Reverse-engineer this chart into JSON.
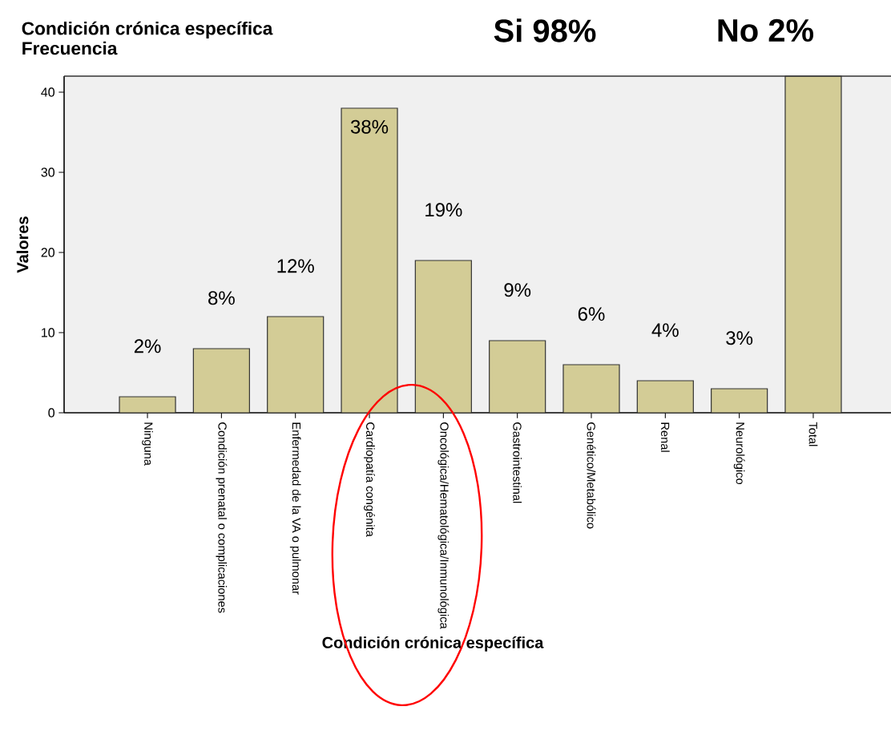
{
  "chart_data": {
    "type": "bar",
    "title": "Condición crónica específica",
    "subtitle": "Frecuencia",
    "annotations": [
      "Si 98%",
      "No 2%"
    ],
    "xlabel": "Condición crónica específica",
    "ylabel": "Valores",
    "categories": [
      "Ninguna",
      "Condición prenatal o complicaciones",
      "Enfermedad de la VA o pulmonar",
      "Cardiopatía congénita",
      "Oncológica/Hematológica/Inmunológica",
      "Gastrointestinal",
      "Genético/Metabólico",
      "Renal",
      "Neurológico",
      "Total"
    ],
    "values": [
      2,
      8,
      12,
      38,
      19,
      9,
      6,
      4,
      3,
      42
    ],
    "value_labels": [
      "2%",
      "8%",
      "12%",
      "38%",
      "19%",
      "9%",
      "6%",
      "4%",
      "3%",
      null
    ],
    "color": "#d3cc96",
    "ylim": [
      0,
      42
    ],
    "yticks": [
      0,
      10,
      20,
      30,
      40
    ]
  }
}
